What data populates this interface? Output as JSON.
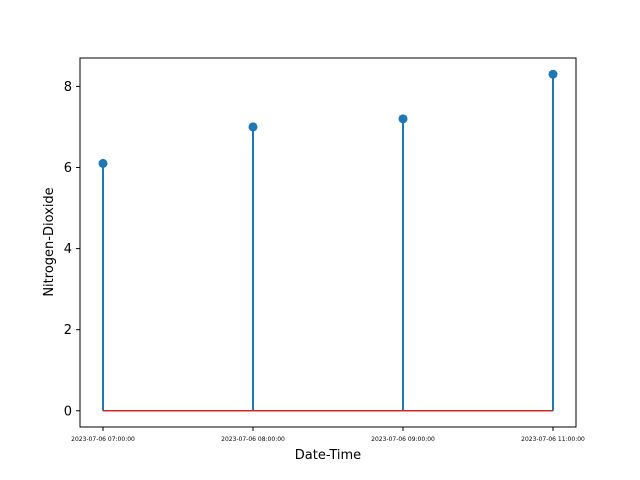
{
  "chart_data": {
    "type": "stem",
    "title": "",
    "xlabel": "Date-Time",
    "ylabel": "Nitrogen-Dioxide",
    "categories": [
      "2023-07-06 07:00:00",
      "2023-07-06 08:00:00",
      "2023-07-06 09:00:00",
      "2023-07-06 11:00:00"
    ],
    "values": [
      6.1,
      7.0,
      7.2,
      8.3
    ],
    "ylim": [
      -0.4,
      8.7
    ],
    "yticks": [
      0,
      2,
      4,
      6,
      8
    ],
    "baseline": 0,
    "grid": false,
    "colors": {
      "stem": "#1f77b4",
      "baseline": "#d62728"
    }
  }
}
